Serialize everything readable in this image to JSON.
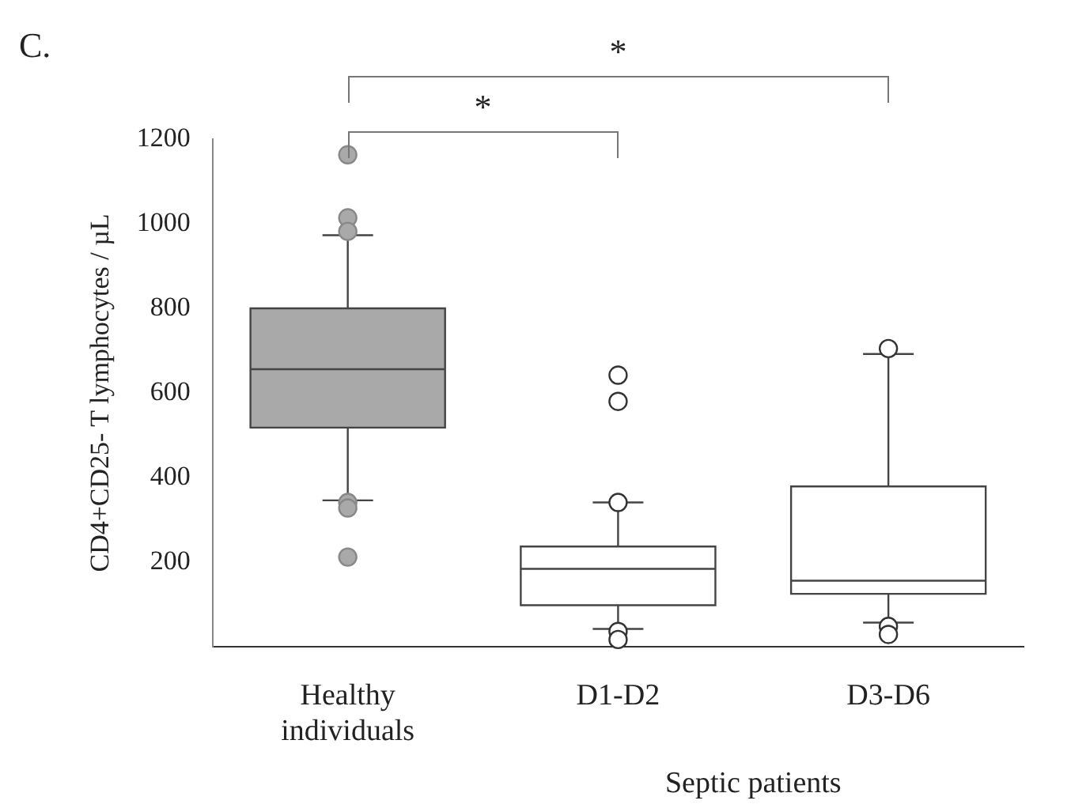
{
  "chart_data": {
    "type": "box",
    "title": "C.",
    "ylabel": "CD4+CD25- T lymphocytes / µL",
    "categories": [
      "Healthy individuals",
      "D1-D2",
      "D3-D6"
    ],
    "colors": [
      "#a9a9a9",
      "#ffffff",
      "#ffffff"
    ],
    "boxes": [
      {
        "low": 346,
        "q1": 518,
        "median": 656,
        "q3": 800,
        "high": 973,
        "outliers": [
          1163,
          1014,
          982,
          341,
          328,
          212
        ]
      },
      {
        "low": 42,
        "q1": 98,
        "median": 184,
        "q3": 237,
        "high": 341,
        "outliers": [
          642,
          580,
          341,
          36,
          17
        ]
      },
      {
        "low": 57,
        "q1": 125,
        "median": 156,
        "q3": 379,
        "high": 692,
        "outliers": [
          705,
          48,
          29
        ]
      }
    ],
    "ylim": [
      0,
      1200
    ],
    "yticks": [
      200,
      400,
      600,
      800,
      1000,
      1200
    ],
    "grid": false,
    "legend": false,
    "annotations": [
      "*",
      "*",
      "Septic patients"
    ]
  }
}
